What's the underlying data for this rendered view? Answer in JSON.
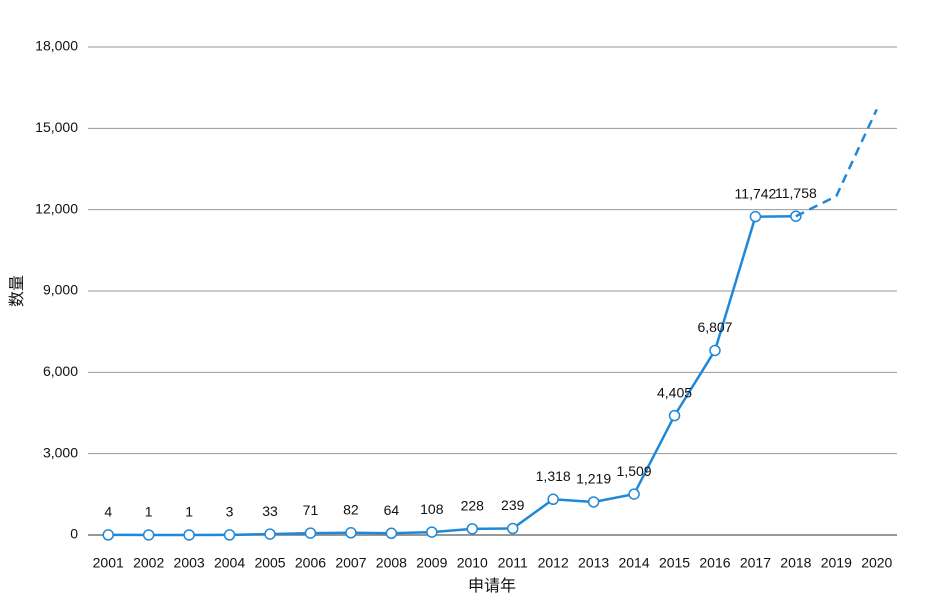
{
  "chart_data": {
    "type": "line",
    "x_label": "申请年",
    "y_label": "数量",
    "categories": [
      "2001",
      "2002",
      "2003",
      "2004",
      "2005",
      "2006",
      "2007",
      "2008",
      "2009",
      "2010",
      "2011",
      "2012",
      "2013",
      "2014",
      "2015",
      "2016",
      "2017",
      "2018",
      "2019",
      "2020"
    ],
    "series": [
      {
        "color": "#1f88d8",
        "dashed": false,
        "markers": true,
        "values": [
          4,
          1,
          1,
          3,
          33,
          71,
          82,
          64,
          108,
          228,
          239,
          1318,
          1219,
          1509,
          4405,
          6807,
          11742,
          11758,
          null,
          null
        ],
        "value_labels": [
          "4",
          "1",
          "1",
          "3",
          "33",
          "71",
          "82",
          "64",
          "108",
          "228",
          "239",
          "1,318",
          "1,219",
          "1,509",
          "4,405",
          "6,807",
          "11,742",
          "11,758",
          null,
          null
        ]
      },
      {
        "color": "#1f88d8",
        "dashed": true,
        "markers": false,
        "values": [
          null,
          null,
          null,
          null,
          null,
          null,
          null,
          null,
          null,
          null,
          null,
          null,
          null,
          null,
          null,
          null,
          null,
          11758,
          12500,
          15700
        ]
      }
    ],
    "ylim": [
      0,
      18000
    ],
    "yticks": [
      0,
      {
        "value": 3000,
        "label": "3,000"
      },
      {
        "value": 6000,
        "label": "6,000"
      },
      {
        "value": 9000,
        "label": "9,000"
      },
      {
        "value": 12000,
        "label": "12,000"
      },
      {
        "value": 15000,
        "label": "15,000"
      },
      {
        "value": 18000,
        "label": "18,000"
      }
    ],
    "grid": true
  }
}
